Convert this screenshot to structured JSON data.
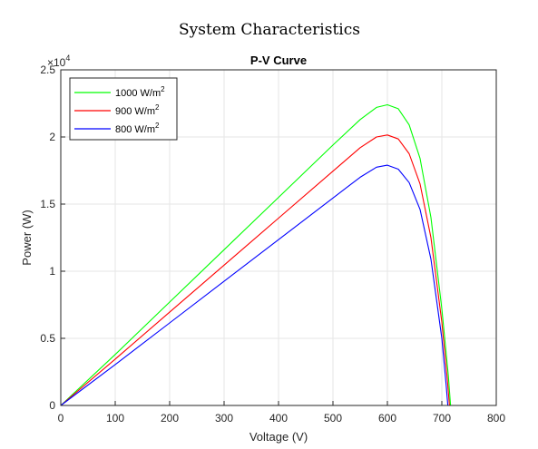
{
  "figure_title": "System Characteristics",
  "chart_data": {
    "type": "line",
    "title": "P-V Curve",
    "xlabel": "Voltage (V)",
    "ylabel": "Power (W)",
    "xlim": [
      0,
      800
    ],
    "ylim": [
      0,
      2.5
    ],
    "y_multiplier": "×10",
    "y_multiplier_exp": "4",
    "x_ticks": [
      "0",
      "100",
      "200",
      "300",
      "400",
      "500",
      "600",
      "700",
      "800"
    ],
    "y_ticks": [
      "0",
      "0.5",
      "1",
      "1.5",
      "2",
      "2.5"
    ],
    "grid": true,
    "legend_position": "top-left",
    "series": [
      {
        "name": "1000 W/m",
        "name_sup": "2",
        "color": "#00ff00",
        "points": [
          [
            0,
            0
          ],
          [
            100,
            0.38
          ],
          [
            200,
            0.77
          ],
          [
            300,
            1.16
          ],
          [
            400,
            1.55
          ],
          [
            500,
            1.94
          ],
          [
            550,
            2.13
          ],
          [
            580,
            2.22
          ],
          [
            600,
            2.24
          ],
          [
            620,
            2.21
          ],
          [
            640,
            2.09
          ],
          [
            660,
            1.84
          ],
          [
            680,
            1.4
          ],
          [
            700,
            0.72
          ],
          [
            712,
            0.22
          ],
          [
            716,
            0
          ]
        ]
      },
      {
        "name": "900 W/m",
        "name_sup": "2",
        "color": "#ff0000",
        "points": [
          [
            0,
            0
          ],
          [
            100,
            0.345
          ],
          [
            200,
            0.695
          ],
          [
            300,
            1.045
          ],
          [
            400,
            1.395
          ],
          [
            500,
            1.745
          ],
          [
            550,
            1.92
          ],
          [
            580,
            2.0
          ],
          [
            600,
            2.015
          ],
          [
            620,
            1.985
          ],
          [
            640,
            1.875
          ],
          [
            660,
            1.65
          ],
          [
            680,
            1.25
          ],
          [
            700,
            0.62
          ],
          [
            710,
            0.2
          ],
          [
            714,
            0
          ]
        ]
      },
      {
        "name": "800 W/m",
        "name_sup": "2",
        "color": "#0000ff",
        "points": [
          [
            0,
            0
          ],
          [
            100,
            0.305
          ],
          [
            200,
            0.615
          ],
          [
            300,
            0.925
          ],
          [
            400,
            1.235
          ],
          [
            500,
            1.545
          ],
          [
            550,
            1.7
          ],
          [
            580,
            1.775
          ],
          [
            600,
            1.79
          ],
          [
            620,
            1.76
          ],
          [
            640,
            1.66
          ],
          [
            660,
            1.46
          ],
          [
            680,
            1.09
          ],
          [
            700,
            0.5
          ],
          [
            708,
            0.15
          ],
          [
            711,
            0
          ]
        ]
      }
    ]
  }
}
